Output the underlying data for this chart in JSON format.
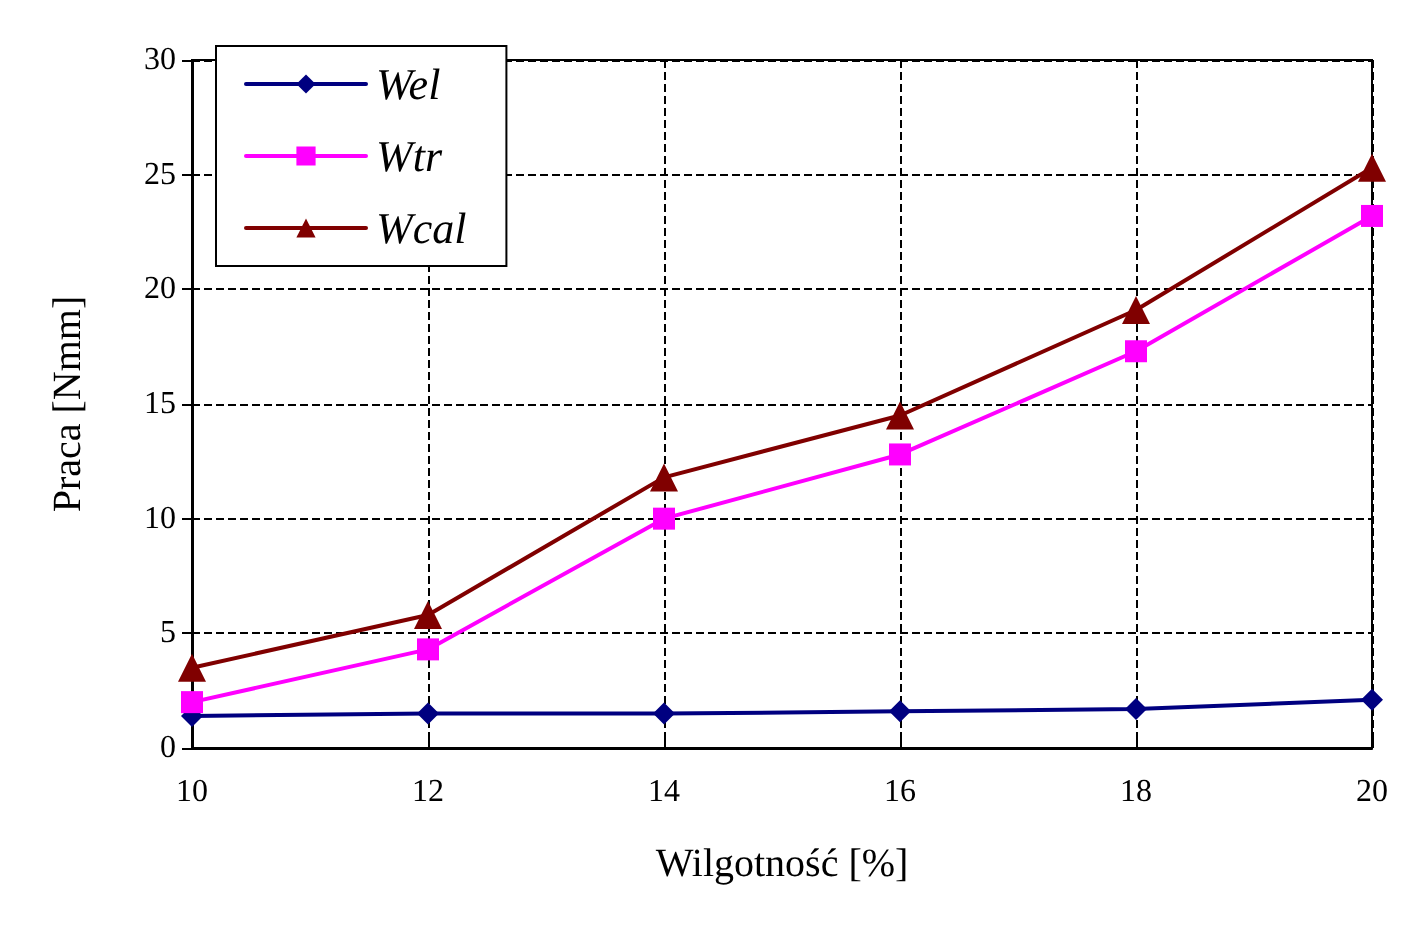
{
  "chart_data": {
    "type": "line",
    "xlabel": "Wilgotność [%]",
    "ylabel": "Praca [Nmm]",
    "x": [
      10,
      12,
      14,
      16,
      18,
      20
    ],
    "series": [
      {
        "name": "Wel",
        "color": "#000080",
        "marker": "diamond",
        "values": [
          1.4,
          1.5,
          1.5,
          1.6,
          1.7,
          2.1
        ]
      },
      {
        "name": "Wtr",
        "color": "#ff00ff",
        "marker": "square",
        "values": [
          2.0,
          4.3,
          10.0,
          12.8,
          17.3,
          23.2
        ]
      },
      {
        "name": "Wcal",
        "color": "#800000",
        "marker": "triangle",
        "values": [
          3.5,
          5.8,
          11.8,
          14.5,
          19.1,
          25.3
        ]
      }
    ],
    "xlim": [
      10,
      20
    ],
    "xticks": [
      10,
      12,
      14,
      16,
      18,
      20
    ],
    "ylim": [
      0,
      30
    ],
    "yticks": [
      0,
      5,
      10,
      15,
      20,
      25,
      30
    ],
    "grid": true,
    "legend": "top left",
    "line_style": "solid"
  }
}
